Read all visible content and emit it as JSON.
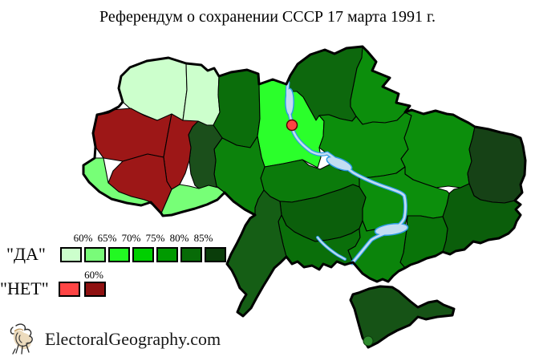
{
  "title": "Референдум о сохранении СССР 17 марта 1991 г.",
  "legend": {
    "yes_label": "\"ДА\"",
    "no_label": "\"НЕТ\"",
    "yes_percent_labels": [
      "60%",
      "65%",
      "70%",
      "75%",
      "80%",
      "85%"
    ],
    "no_percent_label": "60%",
    "yes_colors": [
      "#ccffcc",
      "#79fb79",
      "#22f922",
      "#00cf00",
      "#009a00",
      "#076b07",
      "#0a3d0a"
    ],
    "no_colors": [
      "#ff4545",
      "#8f1111"
    ]
  },
  "footer": {
    "site": "ElectoralGeography.com"
  },
  "map": {
    "river_fill_color": "#c2ddf2",
    "river_edge_color": "#2d9ce3",
    "outline_color": "#000000",
    "regions": [
      {
        "id": "volyn",
        "color": "#ccffcc"
      },
      {
        "id": "rivne",
        "color": "#ccffcc"
      },
      {
        "id": "zhytomyr",
        "color": "#0b6e0b"
      },
      {
        "id": "kyiv-oblast",
        "color": "#2bff2b"
      },
      {
        "id": "chernihiv",
        "color": "#0d680d"
      },
      {
        "id": "sumy",
        "color": "#0c8e0c"
      },
      {
        "id": "poltava",
        "color": "#0c8e0c"
      },
      {
        "id": "kharkiv",
        "color": "#0c8e0c"
      },
      {
        "id": "luhansk",
        "color": "#164216"
      },
      {
        "id": "donetsk",
        "color": "#0b5e0b"
      },
      {
        "id": "dnipropetrovsk",
        "color": "#0c8e0c"
      },
      {
        "id": "zaporizhzhia",
        "color": "#097409"
      },
      {
        "id": "cherkasy",
        "color": "#0b7b0b"
      },
      {
        "id": "kirovohrad",
        "color": "#0b5f0b"
      },
      {
        "id": "vinnytsia",
        "color": "#0c820c"
      },
      {
        "id": "khmelnytskyi",
        "color": "#1b4f1b"
      },
      {
        "id": "lviv",
        "color": "#9d1717"
      },
      {
        "id": "ternopil",
        "color": "#9d1717"
      },
      {
        "id": "ivano-frankivsk",
        "color": "#9d1717"
      },
      {
        "id": "zakarpattia",
        "color": "#77ff77"
      },
      {
        "id": "chernivtsi",
        "color": "#77ff77"
      },
      {
        "id": "mykolaiv",
        "color": "#0a6f0a"
      },
      {
        "id": "kherson",
        "color": "#0b840b"
      },
      {
        "id": "odesa",
        "color": "#155e15"
      },
      {
        "id": "crimea",
        "color": "#165316"
      }
    ],
    "cities": [
      {
        "id": "kyiv-city",
        "color": "#ff4343",
        "edge": "#5a0000"
      },
      {
        "id": "sevastopol-city",
        "color": "#2e8b2e",
        "edge": "#0c3c0c"
      }
    ]
  }
}
